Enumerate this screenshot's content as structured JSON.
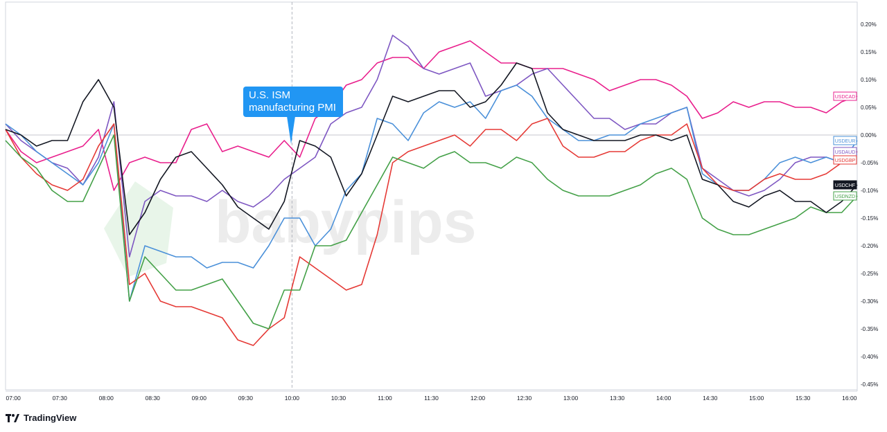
{
  "chart_data": {
    "type": "line",
    "annotation": {
      "lines": [
        "U.S. ISM",
        "manufacturing PMI"
      ],
      "time": "10:00"
    },
    "y_axis": {
      "range": [
        -0.46,
        0.24
      ],
      "ticks": [
        "0.20%",
        "0.15%",
        "0.10%",
        "0.05%",
        "0.00%",
        "-0.05%",
        "-0.10%",
        "-0.15%",
        "-0.20%",
        "-0.25%",
        "-0.30%",
        "-0.35%",
        "-0.40%",
        "-0.45%"
      ],
      "tick_values": [
        0.2,
        0.15,
        0.1,
        0.05,
        0.0,
        -0.05,
        -0.1,
        -0.15,
        -0.2,
        -0.25,
        -0.3,
        -0.35,
        -0.4,
        -0.45
      ]
    },
    "x_axis": {
      "ticks": [
        "07:00",
        "07:30",
        "08:00",
        "08:30",
        "09:00",
        "09:30",
        "10:00",
        "10:30",
        "11:00",
        "11:30",
        "12:00",
        "12:30",
        "13:00",
        "13:30",
        "14:00",
        "14:30",
        "15:00",
        "15:30",
        "16:00"
      ],
      "tick_minutes": [
        420,
        450,
        480,
        510,
        540,
        570,
        600,
        630,
        660,
        690,
        720,
        750,
        780,
        810,
        840,
        870,
        900,
        930,
        960
      ],
      "range_minutes": [
        415,
        965
      ]
    },
    "x_minutes": [
      415,
      425,
      435,
      445,
      455,
      465,
      475,
      485,
      495,
      505,
      515,
      525,
      535,
      545,
      555,
      565,
      575,
      585,
      595,
      605,
      615,
      625,
      635,
      645,
      655,
      665,
      675,
      685,
      695,
      705,
      715,
      725,
      735,
      745,
      755,
      765,
      775,
      785,
      795,
      805,
      815,
      825,
      835,
      845,
      855,
      865,
      875,
      885,
      895,
      905,
      915,
      925,
      935,
      945,
      955,
      965
    ],
    "series": [
      {
        "name": "USDCAD",
        "color": "#e91e8c",
        "end_label": "USDCAD",
        "values": [
          0.01,
          -0.03,
          -0.05,
          -0.04,
          -0.03,
          -0.02,
          0.01,
          -0.1,
          -0.05,
          -0.04,
          -0.05,
          -0.05,
          0.01,
          0.02,
          -0.03,
          -0.02,
          -0.03,
          -0.04,
          -0.01,
          -0.04,
          0.03,
          0.05,
          0.09,
          0.1,
          0.13,
          0.14,
          0.14,
          0.12,
          0.15,
          0.16,
          0.17,
          0.15,
          0.13,
          0.13,
          0.12,
          0.12,
          0.12,
          0.11,
          0.1,
          0.08,
          0.09,
          0.1,
          0.1,
          0.09,
          0.07,
          0.03,
          0.04,
          0.06,
          0.05,
          0.06,
          0.06,
          0.05,
          0.05,
          0.04,
          0.06,
          0.07
        ]
      },
      {
        "name": "USDAUD",
        "color": "#7e57c2",
        "end_label": "USDAUD",
        "values": [
          0.02,
          -0.01,
          -0.03,
          -0.05,
          -0.06,
          -0.09,
          -0.04,
          0.06,
          -0.22,
          -0.12,
          -0.1,
          -0.11,
          -0.11,
          -0.12,
          -0.1,
          -0.12,
          -0.13,
          -0.11,
          -0.08,
          -0.06,
          -0.04,
          0.02,
          0.04,
          0.05,
          0.1,
          0.18,
          0.16,
          0.12,
          0.11,
          0.12,
          0.13,
          0.07,
          0.08,
          0.09,
          0.11,
          0.12,
          0.09,
          0.06,
          0.03,
          0.03,
          0.01,
          0.02,
          0.02,
          0.04,
          0.05,
          -0.06,
          -0.08,
          -0.1,
          -0.11,
          -0.1,
          -0.08,
          -0.05,
          -0.04,
          -0.04,
          -0.05,
          -0.03
        ]
      },
      {
        "name": "USDEUR",
        "color": "#4a90d9",
        "end_label": "USDEUR",
        "values": [
          0.02,
          0.0,
          -0.03,
          -0.05,
          -0.07,
          -0.09,
          -0.05,
          0.02,
          -0.3,
          -0.2,
          -0.21,
          -0.22,
          -0.22,
          -0.24,
          -0.23,
          -0.23,
          -0.24,
          -0.2,
          -0.15,
          -0.15,
          -0.2,
          -0.17,
          -0.1,
          -0.07,
          0.03,
          0.02,
          -0.01,
          0.04,
          0.06,
          0.05,
          0.06,
          0.03,
          0.08,
          0.09,
          0.07,
          0.03,
          0.01,
          -0.01,
          -0.01,
          0.0,
          0.0,
          0.02,
          0.03,
          0.04,
          0.05,
          -0.07,
          -0.09,
          -0.1,
          -0.1,
          -0.08,
          -0.05,
          -0.04,
          -0.05,
          -0.04,
          -0.05,
          -0.01
        ]
      },
      {
        "name": "USDGBP",
        "color": "#e53935",
        "end_label": "USDGBP",
        "values": [
          0.01,
          -0.04,
          -0.07,
          -0.09,
          -0.1,
          -0.08,
          -0.02,
          0.02,
          -0.27,
          -0.25,
          -0.3,
          -0.31,
          -0.31,
          -0.32,
          -0.33,
          -0.37,
          -0.38,
          -0.35,
          -0.33,
          -0.22,
          -0.24,
          -0.26,
          -0.28,
          -0.27,
          -0.18,
          -0.05,
          -0.03,
          -0.02,
          -0.01,
          0.0,
          -0.02,
          0.01,
          0.01,
          -0.01,
          0.02,
          0.03,
          -0.02,
          -0.04,
          -0.04,
          -0.03,
          -0.03,
          -0.01,
          0.0,
          0.0,
          0.02,
          -0.06,
          -0.09,
          -0.1,
          -0.1,
          -0.08,
          -0.07,
          -0.08,
          -0.08,
          -0.07,
          -0.05,
          -0.03
        ]
      },
      {
        "name": "USDNZD",
        "color": "#43a047",
        "end_label": "USDNZD",
        "values": [
          -0.01,
          -0.04,
          -0.06,
          -0.1,
          -0.12,
          -0.12,
          -0.06,
          0.0,
          -0.3,
          -0.22,
          -0.25,
          -0.28,
          -0.28,
          -0.27,
          -0.26,
          -0.3,
          -0.34,
          -0.35,
          -0.28,
          -0.28,
          -0.2,
          -0.2,
          -0.19,
          -0.14,
          -0.09,
          -0.04,
          -0.05,
          -0.06,
          -0.04,
          -0.03,
          -0.05,
          -0.05,
          -0.06,
          -0.04,
          -0.05,
          -0.08,
          -0.1,
          -0.11,
          -0.11,
          -0.11,
          -0.1,
          -0.09,
          -0.07,
          -0.06,
          -0.08,
          -0.15,
          -0.17,
          -0.18,
          -0.18,
          -0.17,
          -0.16,
          -0.15,
          -0.13,
          -0.14,
          -0.14,
          -0.11
        ]
      },
      {
        "name": "USDCHF",
        "color": "#131722",
        "end_label": "USDCHF",
        "values": [
          0.01,
          0.0,
          -0.02,
          -0.01,
          -0.01,
          0.06,
          0.1,
          0.05,
          -0.18,
          -0.14,
          -0.08,
          -0.04,
          -0.03,
          -0.06,
          -0.09,
          -0.13,
          -0.15,
          -0.17,
          -0.12,
          -0.01,
          -0.02,
          -0.04,
          -0.11,
          -0.07,
          0.0,
          0.07,
          0.06,
          0.07,
          0.08,
          0.08,
          0.05,
          0.06,
          0.09,
          0.13,
          0.12,
          0.04,
          0.01,
          0.0,
          -0.01,
          -0.01,
          -0.01,
          0.0,
          0.0,
          -0.01,
          0.0,
          -0.08,
          -0.09,
          -0.12,
          -0.13,
          -0.11,
          -0.1,
          -0.12,
          -0.12,
          -0.14,
          -0.12,
          -0.09
        ]
      }
    ],
    "zero_line": 0.0,
    "grid": false,
    "legend": "right-axis end labels"
  },
  "branding": {
    "logo_text": "TradingView",
    "watermark": "babypips"
  }
}
